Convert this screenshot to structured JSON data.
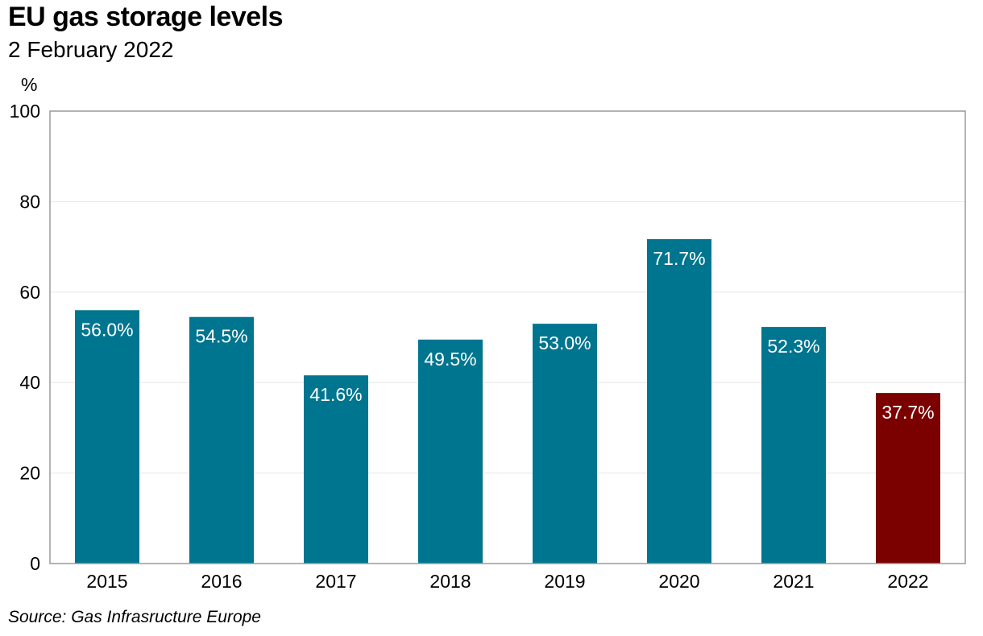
{
  "header": {
    "title": "EU gas storage levels",
    "subtitle": "2 February 2022"
  },
  "footer": {
    "source": "Source: Gas Infrasructure Europe"
  },
  "chart_data": {
    "type": "bar",
    "title": "EU gas storage levels",
    "subtitle": "2 February 2022",
    "unit_label": "%",
    "categories": [
      "2015",
      "2016",
      "2017",
      "2018",
      "2019",
      "2020",
      "2021",
      "2022"
    ],
    "values": [
      56.0,
      54.5,
      41.6,
      49.5,
      53.0,
      71.7,
      52.3,
      37.7
    ],
    "data_labels": [
      "56.0%",
      "54.5%",
      "41.6%",
      "49.5%",
      "53.0%",
      "71.7%",
      "52.3%",
      "37.7%"
    ],
    "ylim": [
      0,
      100
    ],
    "yticks": [
      0,
      20,
      40,
      60,
      80,
      100
    ],
    "grid": true,
    "legend": "none",
    "colors": {
      "default": "#00758f",
      "highlight": "#7b0000",
      "grid": "#e6e6e6",
      "frame": "#9a9a9a"
    },
    "highlight_category": "2022"
  }
}
